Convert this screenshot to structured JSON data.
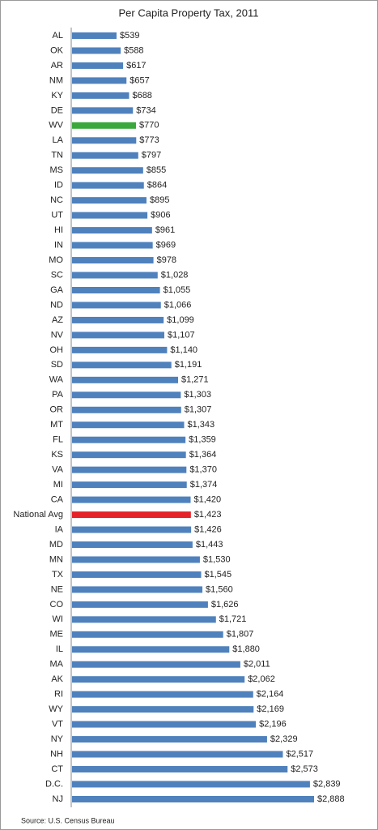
{
  "chart_data": {
    "type": "bar",
    "orientation": "horizontal",
    "title": "Per Capita Property Tax, 2011",
    "source": "Source: U.S. Census Bureau",
    "categories": [
      "AL",
      "OK",
      "AR",
      "NM",
      "KY",
      "DE",
      "WV",
      "LA",
      "TN",
      "MS",
      "ID",
      "NC",
      "UT",
      "HI",
      "IN",
      "MO",
      "SC",
      "GA",
      "ND",
      "AZ",
      "NV",
      "OH",
      "SD",
      "WA",
      "PA",
      "OR",
      "MT",
      "FL",
      "KS",
      "VA",
      "MI",
      "CA",
      "National Avg",
      "IA",
      "MD",
      "MN",
      "TX",
      "NE",
      "CO",
      "WI",
      "ME",
      "IL",
      "MA",
      "AK",
      "RI",
      "WY",
      "VT",
      "NY",
      "NH",
      "CT",
      "D.C.",
      "NJ"
    ],
    "values": [
      539,
      588,
      617,
      657,
      688,
      734,
      770,
      773,
      797,
      855,
      864,
      895,
      906,
      961,
      969,
      978,
      1028,
      1055,
      1066,
      1099,
      1107,
      1140,
      1191,
      1271,
      1303,
      1307,
      1343,
      1359,
      1364,
      1370,
      1374,
      1420,
      1423,
      1426,
      1443,
      1530,
      1545,
      1560,
      1626,
      1721,
      1807,
      1880,
      2011,
      2062,
      2164,
      2169,
      2196,
      2329,
      2517,
      2573,
      2839,
      2888
    ],
    "value_labels": [
      "$539",
      "$588",
      "$617",
      "$657",
      "$688",
      "$734",
      "$770",
      "$773",
      "$797",
      "$855",
      "$864",
      "$895",
      "$906",
      "$961",
      "$969",
      "$978",
      "$1,028",
      "$1,055",
      "$1,066",
      "$1,099",
      "$1,107",
      "$1,140",
      "$1,191",
      "$1,271",
      "$1,303",
      "$1,307",
      "$1,343",
      "$1,359",
      "$1,364",
      "$1,370",
      "$1,374",
      "$1,420",
      "$1,423",
      "$1,426",
      "$1,443",
      "$1,530",
      "$1,545",
      "$1,560",
      "$1,626",
      "$1,721",
      "$1,807",
      "$1,880",
      "$2,011",
      "$2,062",
      "$2,164",
      "$2,169",
      "$2,196",
      "$2,329",
      "$2,517",
      "$2,573",
      "$2,839",
      "$2,888"
    ],
    "colors": [
      "#4f81bd",
      "#4f81bd",
      "#4f81bd",
      "#4f81bd",
      "#4f81bd",
      "#4f81bd",
      "#3aa83c",
      "#4f81bd",
      "#4f81bd",
      "#4f81bd",
      "#4f81bd",
      "#4f81bd",
      "#4f81bd",
      "#4f81bd",
      "#4f81bd",
      "#4f81bd",
      "#4f81bd",
      "#4f81bd",
      "#4f81bd",
      "#4f81bd",
      "#4f81bd",
      "#4f81bd",
      "#4f81bd",
      "#4f81bd",
      "#4f81bd",
      "#4f81bd",
      "#4f81bd",
      "#4f81bd",
      "#4f81bd",
      "#4f81bd",
      "#4f81bd",
      "#4f81bd",
      "#e52228",
      "#4f81bd",
      "#4f81bd",
      "#4f81bd",
      "#4f81bd",
      "#4f81bd",
      "#4f81bd",
      "#4f81bd",
      "#4f81bd",
      "#4f81bd",
      "#4f81bd",
      "#4f81bd",
      "#4f81bd",
      "#4f81bd",
      "#4f81bd",
      "#4f81bd",
      "#4f81bd",
      "#4f81bd",
      "#4f81bd",
      "#4f81bd"
    ]
  }
}
